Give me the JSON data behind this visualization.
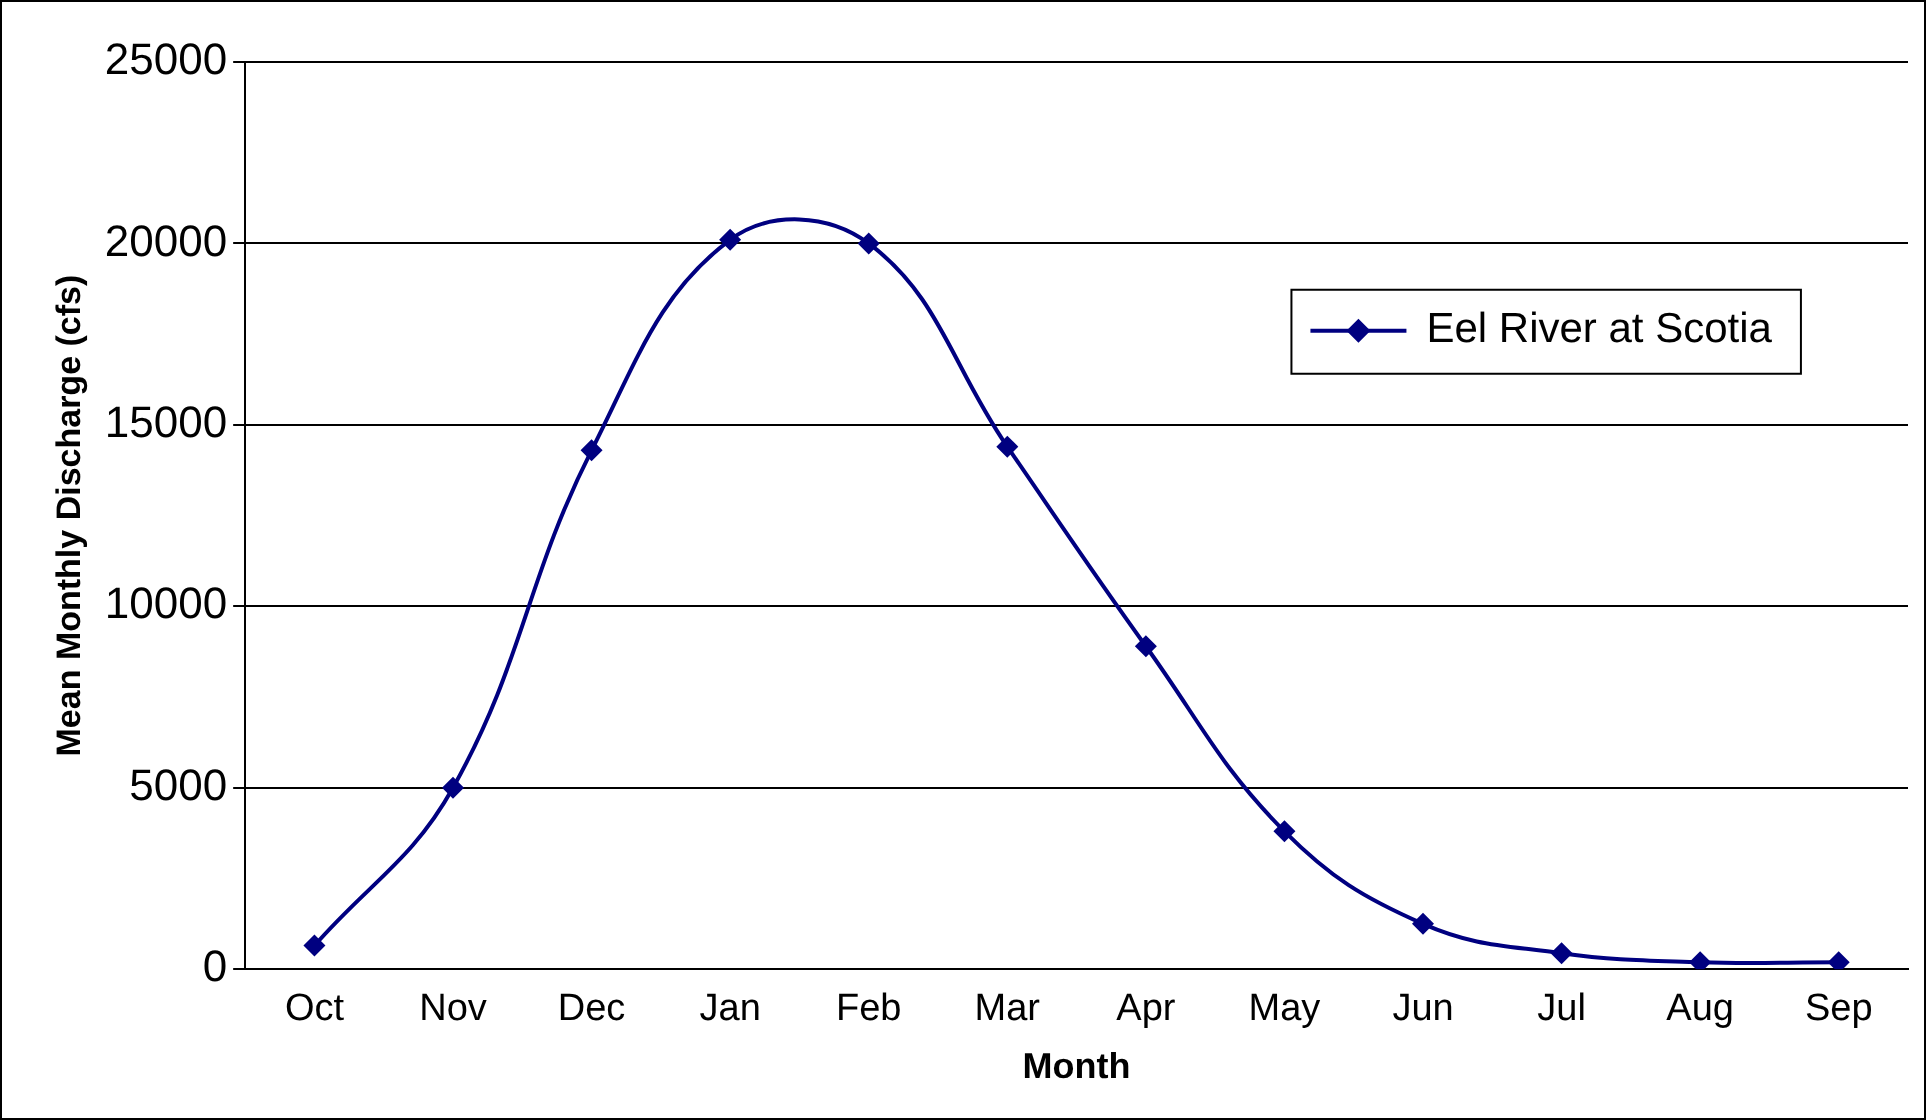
{
  "chart_data": {
    "type": "line",
    "xlabel": "Month",
    "ylabel": "Mean Monthly Discharge (cfs)",
    "categories": [
      "Oct",
      "Nov",
      "Dec",
      "Jan",
      "Feb",
      "Mar",
      "Apr",
      "May",
      "Jun",
      "Jul",
      "Aug",
      "Sep"
    ],
    "series": [
      {
        "name": "Eel River at Scotia",
        "color": "#000080",
        "values": [
          650,
          5000,
          14300,
          20100,
          20000,
          14400,
          8900,
          3800,
          1250,
          440,
          190,
          190
        ]
      }
    ],
    "ylim": [
      0,
      25000
    ],
    "yticks": [
      0,
      5000,
      10000,
      15000,
      20000,
      25000
    ],
    "grid": "y",
    "legend": "top right",
    "marker": "diamond",
    "line_style": "solid"
  }
}
